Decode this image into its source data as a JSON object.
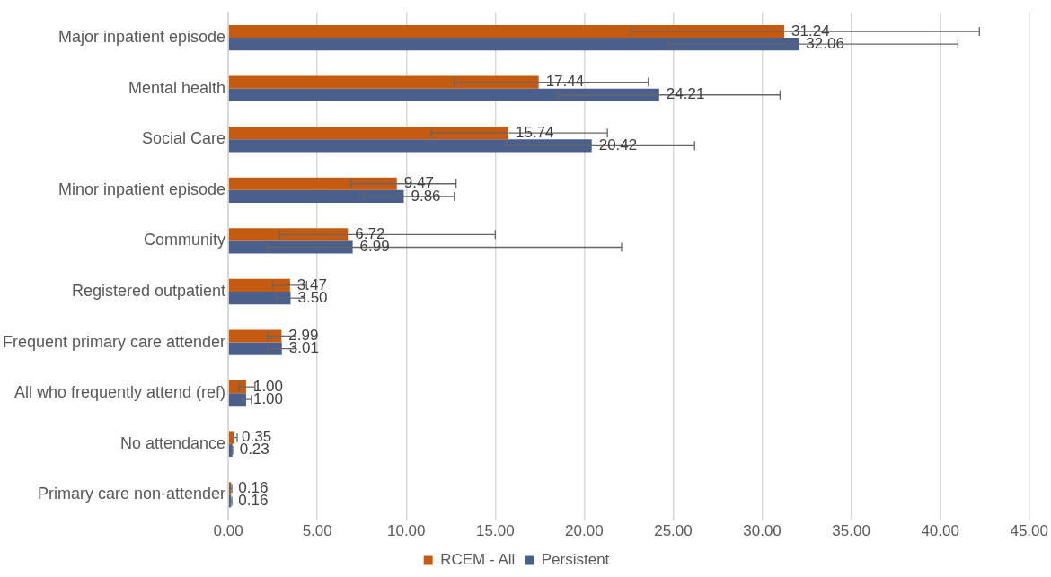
{
  "chart_data": {
    "type": "bar",
    "orientation": "horizontal",
    "categories": [
      "Major inpatient episode",
      "Mental health",
      "Social Care",
      "Minor inpatient episode",
      "Community",
      "Registered outpatient",
      "Frequent primary care attender",
      "All who frequently attend (ref)",
      "No attendance",
      "Primary care non-attender"
    ],
    "series": [
      {
        "name": "RCEM - All",
        "color": "#c55a11",
        "values": [
          31.24,
          17.44,
          15.74,
          9.47,
          6.72,
          3.47,
          2.99,
          1.0,
          0.35,
          0.16
        ],
        "value_labels": [
          "31.24",
          "17.44",
          "15.74",
          "9.47",
          "6.72",
          "3.47",
          "2.99",
          "1.00",
          "0.35",
          "0.16"
        ],
        "errors": [
          [
            22.6,
            42.2
          ],
          [
            12.7,
            23.6
          ],
          [
            11.4,
            21.3
          ],
          [
            6.9,
            12.8
          ],
          [
            2.9,
            15.0
          ],
          [
            2.5,
            4.4
          ],
          [
            2.2,
            3.8
          ],
          [
            0.6,
            1.5
          ],
          [
            0.3,
            0.5
          ],
          [
            0.1,
            0.2
          ]
        ]
      },
      {
        "name": "Persistent",
        "color": "#4a5f8c",
        "values": [
          32.06,
          24.21,
          20.42,
          9.86,
          6.99,
          3.5,
          3.01,
          1.0,
          0.23,
          0.16
        ],
        "value_labels": [
          "32.06",
          "24.21",
          "20.42",
          "9.86",
          "6.99",
          "3.50",
          "3.01",
          "1.00",
          "0.23",
          "0.16"
        ],
        "errors": [
          [
            24.7,
            41.0
          ],
          [
            18.5,
            31.0
          ],
          [
            15.6,
            26.2
          ],
          [
            7.6,
            12.7
          ],
          [
            2.2,
            22.1
          ],
          [
            2.7,
            4.3
          ],
          [
            2.2,
            3.8
          ],
          [
            0.8,
            1.3
          ],
          [
            0.2,
            0.3
          ],
          [
            0.1,
            0.2
          ]
        ]
      }
    ],
    "xlim": [
      0,
      45
    ],
    "xticks": [
      {
        "value": 0,
        "label": "0.00"
      },
      {
        "value": 5,
        "label": "5.00"
      },
      {
        "value": 10,
        "label": "10.00"
      },
      {
        "value": 15,
        "label": "15.00"
      },
      {
        "value": 20,
        "label": "20.00"
      },
      {
        "value": 25,
        "label": "25.00"
      },
      {
        "value": 30,
        "label": "30.00"
      },
      {
        "value": 35,
        "label": "35.00"
      },
      {
        "value": 40,
        "label": "40.00"
      },
      {
        "value": 45,
        "label": "45.00"
      }
    ],
    "grid": "x",
    "legend": "bottom"
  }
}
